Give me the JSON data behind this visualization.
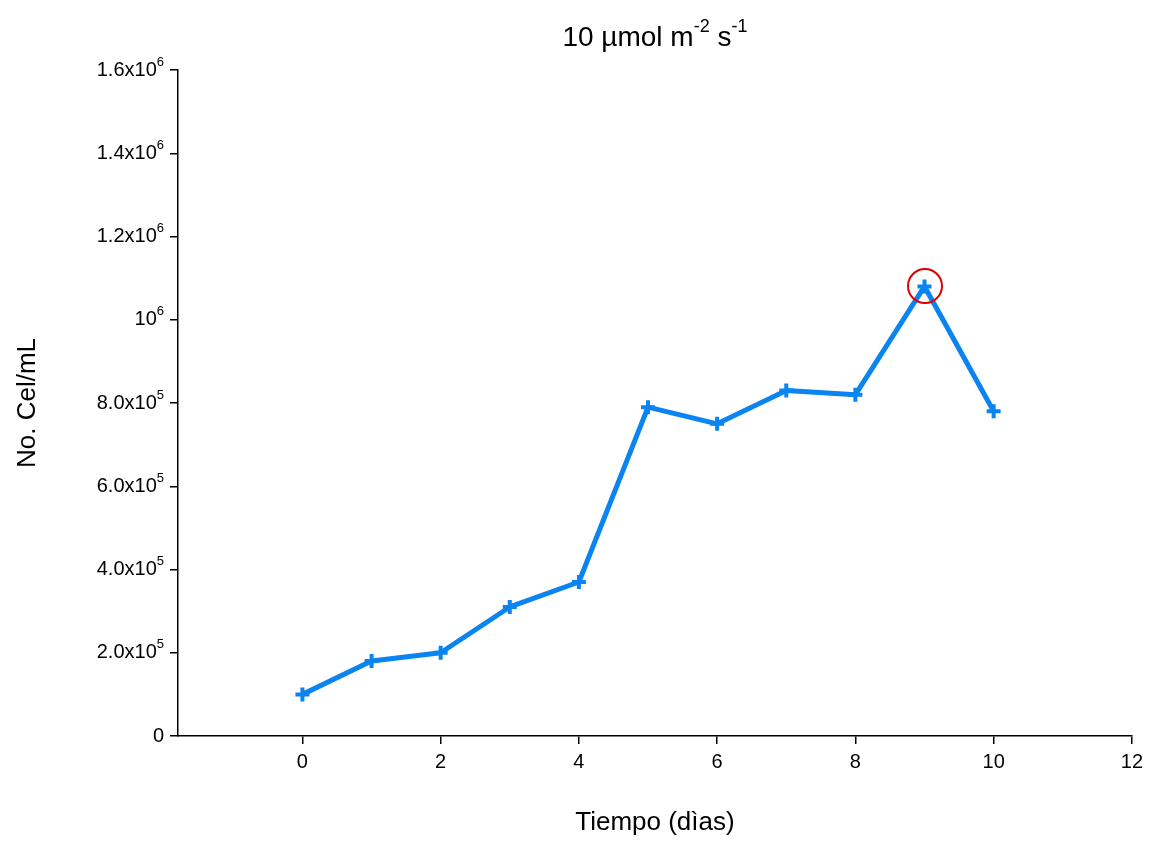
{
  "chart_data": {
    "type": "line",
    "title": "10 µmol m$^{-2}$ s$^{-1}$",
    "xlabel": "Tiempo (dìas)",
    "ylabel": "No. Cel/mL",
    "x": [
      0,
      1,
      2,
      3,
      4,
      5,
      6,
      7,
      8,
      9,
      10
    ],
    "series": [
      {
        "color": "#0a84f0",
        "values": [
          100000,
          180000,
          200000,
          310000,
          370000,
          790000,
          750000,
          830000,
          820000,
          1080000,
          780000
        ]
      }
    ],
    "xlim": [
      -1.8,
      12
    ],
    "xticks": [
      0,
      2,
      4,
      6,
      8,
      10,
      12
    ],
    "ylim": [
      0,
      1600000
    ],
    "yticks": [
      0,
      {
        "value": 200000,
        "label": "2.0x10$^{5}$"
      },
      {
        "value": 400000,
        "label": "4.0x10$^{5}$"
      },
      {
        "value": 600000,
        "label": "6.0x10$^{5}$"
      },
      {
        "value": 800000,
        "label": "8.0x10$^{5}$"
      },
      {
        "value": 1000000,
        "label": "10$^{6}$"
      },
      {
        "value": 1200000,
        "label": "1.2x10$^{6}$"
      },
      {
        "value": 1400000,
        "label": "1.4x10$^{6}$"
      },
      {
        "value": 1600000,
        "label": "1.6x10$^{6}$"
      }
    ],
    "grid": false,
    "legend": false,
    "marker": "cross",
    "line_style": "solid"
  }
}
